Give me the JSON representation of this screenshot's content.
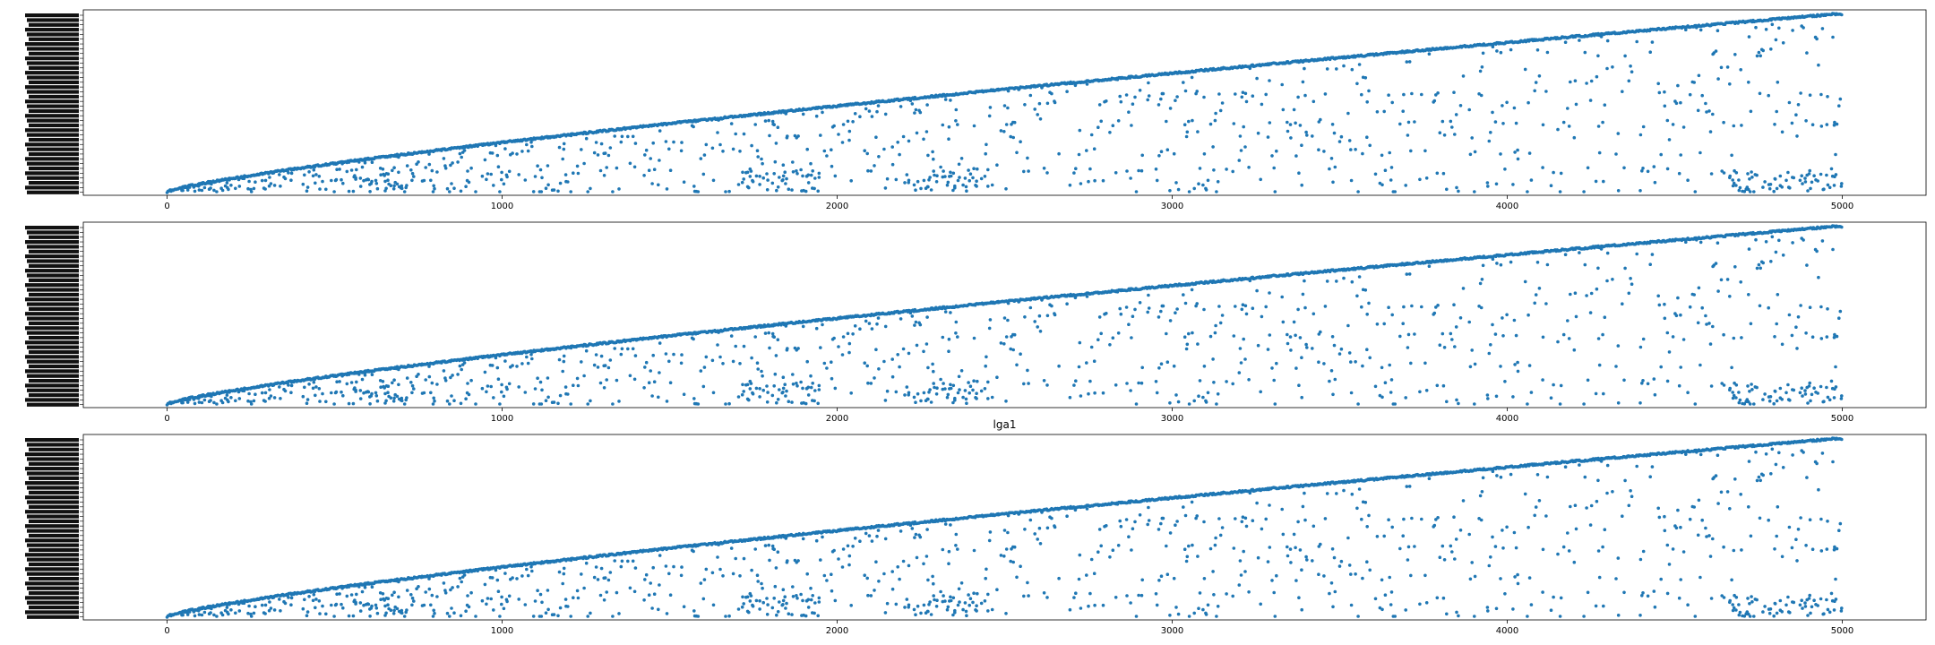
{
  "chart_data": [
    {
      "type": "scatter",
      "title": "",
      "xlim": [
        -250,
        5250
      ],
      "xticks": [
        0,
        1000,
        2000,
        3000,
        4000,
        5000
      ],
      "xtick_labels": [
        "0",
        "1000",
        "2000",
        "3000",
        "4000",
        "5000"
      ],
      "n_points": 5000,
      "color": "#1f77b4",
      "ytick_labels_overlapping": true,
      "grid": false
    },
    {
      "type": "scatter",
      "title": "",
      "xlim": [
        -250,
        5250
      ],
      "xticks": [
        0,
        1000,
        2000,
        3000,
        4000,
        5000
      ],
      "xtick_labels": [
        "0",
        "1000",
        "2000",
        "3000",
        "4000",
        "5000"
      ],
      "n_points": 5000,
      "color": "#1f77b4",
      "ytick_labels_overlapping": true,
      "grid": false
    },
    {
      "type": "scatter",
      "title": "lga1",
      "xlim": [
        -250,
        5250
      ],
      "xticks": [
        0,
        1000,
        2000,
        3000,
        4000,
        5000
      ],
      "xtick_labels": [
        "0",
        "1000",
        "2000",
        "3000",
        "4000",
        "5000"
      ],
      "n_points": 5000,
      "color": "#1f77b4",
      "ytick_labels_overlapping": true,
      "grid": false
    }
  ]
}
